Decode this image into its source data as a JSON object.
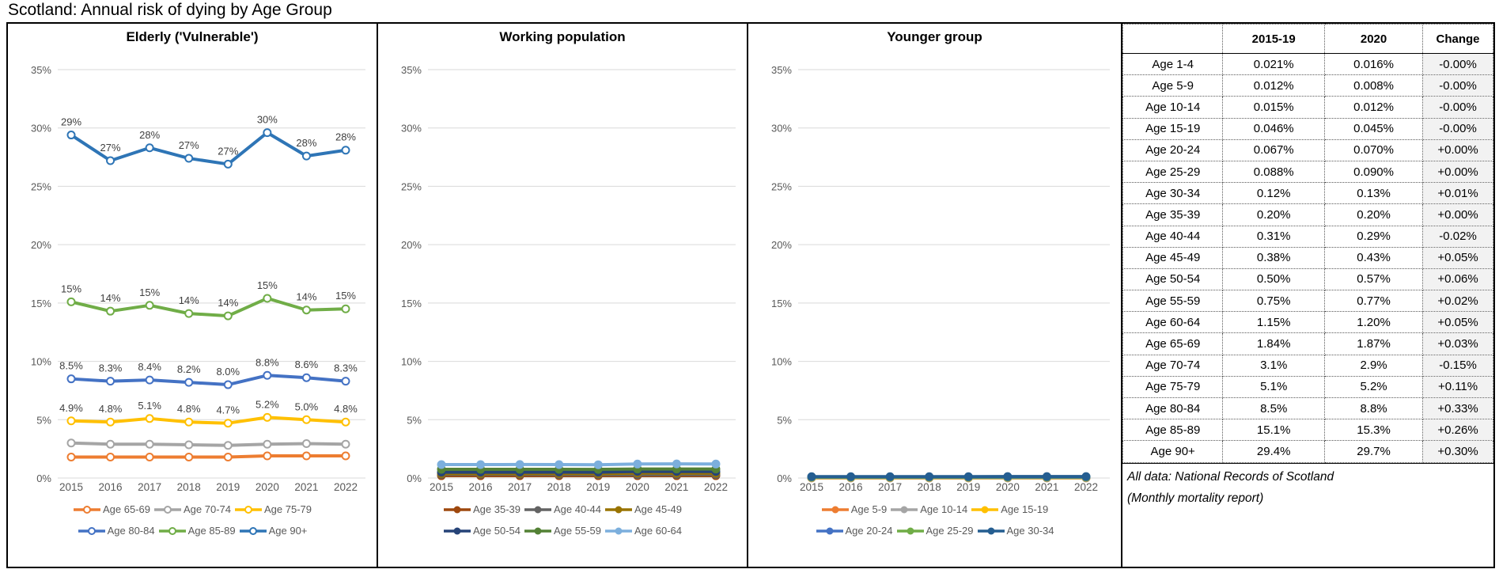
{
  "page_title": "Scotland: Annual risk of dying by Age Group",
  "axis": {
    "years": [
      "2015",
      "2016",
      "2017",
      "2018",
      "2019",
      "2020",
      "2021",
      "2022"
    ],
    "y_ticks_pct": [
      35,
      30,
      25,
      20,
      15,
      10,
      5,
      0
    ],
    "y_max": 35,
    "grid_color": "#D9D9D9",
    "tick_label_color": "#595959",
    "data_label_color": "#3F3F3F"
  },
  "chart_data": [
    {
      "type": "line",
      "title": "Elderly ('Vulnerable')",
      "x": [
        2015,
        2016,
        2017,
        2018,
        2019,
        2020,
        2021,
        2022
      ],
      "ylabel": "",
      "xlabel": "",
      "ylim": [
        0,
        35
      ],
      "marker": "hollow",
      "legend_position": "bottom",
      "series": [
        {
          "name": "Age 65-69",
          "color": "#ED7D31",
          "values": [
            1.8,
            1.8,
            1.8,
            1.8,
            1.8,
            1.9,
            1.9,
            1.9
          ]
        },
        {
          "name": "Age 70-74",
          "color": "#A5A5A5",
          "values": [
            3.0,
            2.9,
            2.9,
            2.85,
            2.8,
            2.9,
            2.95,
            2.9
          ]
        },
        {
          "name": "Age 75-79",
          "color": "#FFC000",
          "values": [
            4.9,
            4.8,
            5.1,
            4.8,
            4.7,
            5.2,
            5.0,
            4.8
          ],
          "labels": [
            "4.9%",
            "4.8%",
            "5.1%",
            "4.8%",
            "4.7%",
            "5.2%",
            "5.0%",
            "4.8%"
          ]
        },
        {
          "name": "Age 80-84",
          "color": "#4472C4",
          "values": [
            8.5,
            8.3,
            8.4,
            8.2,
            8.0,
            8.8,
            8.6,
            8.3
          ],
          "labels": [
            "8.5%",
            "8.3%",
            "8.4%",
            "8.2%",
            "8.0%",
            "8.8%",
            "8.6%",
            "8.3%"
          ]
        },
        {
          "name": "Age 85-89",
          "color": "#70AD47",
          "values": [
            15.1,
            14.3,
            14.8,
            14.1,
            13.9,
            15.4,
            14.4,
            14.5
          ],
          "labels": [
            "15%",
            "14%",
            "15%",
            "14%",
            "14%",
            "15%",
            "14%",
            "15%"
          ]
        },
        {
          "name": "Age 90+",
          "color": "#2E75B6",
          "values": [
            29.4,
            27.2,
            28.3,
            27.4,
            26.9,
            29.6,
            27.6,
            28.1
          ],
          "labels": [
            "29%",
            "27%",
            "28%",
            "27%",
            "27%",
            "30%",
            "28%",
            "28%"
          ]
        }
      ]
    },
    {
      "type": "line",
      "title": "Working population",
      "x": [
        2015,
        2016,
        2017,
        2018,
        2019,
        2020,
        2021,
        2022
      ],
      "ylabel": "",
      "xlabel": "",
      "ylim": [
        0,
        35
      ],
      "marker": "filled",
      "legend_position": "bottom",
      "series": [
        {
          "name": "Age 35-39",
          "color": "#9E480E",
          "values": [
            0.2,
            0.2,
            0.2,
            0.2,
            0.2,
            0.2,
            0.2,
            0.2
          ]
        },
        {
          "name": "Age 40-44",
          "color": "#636363",
          "values": [
            0.31,
            0.31,
            0.31,
            0.3,
            0.3,
            0.29,
            0.3,
            0.3
          ]
        },
        {
          "name": "Age 45-49",
          "color": "#997300",
          "values": [
            0.38,
            0.38,
            0.38,
            0.39,
            0.38,
            0.43,
            0.42,
            0.42
          ]
        },
        {
          "name": "Age 50-54",
          "color": "#264478",
          "values": [
            0.5,
            0.5,
            0.5,
            0.51,
            0.5,
            0.57,
            0.56,
            0.56
          ]
        },
        {
          "name": "Age 55-59",
          "color": "#538135",
          "values": [
            0.75,
            0.75,
            0.75,
            0.75,
            0.74,
            0.77,
            0.77,
            0.77
          ]
        },
        {
          "name": "Age 60-64",
          "color": "#7CAFDD",
          "values": [
            1.15,
            1.15,
            1.16,
            1.15,
            1.14,
            1.2,
            1.21,
            1.2
          ]
        }
      ]
    },
    {
      "type": "line",
      "title": "Younger group",
      "x": [
        2015,
        2016,
        2017,
        2018,
        2019,
        2020,
        2021,
        2022
      ],
      "ylabel": "",
      "xlabel": "",
      "ylim": [
        0,
        35
      ],
      "marker": "filled",
      "legend_position": "bottom",
      "series": [
        {
          "name": "Age 5-9",
          "color": "#ED7D31",
          "values": [
            0.012,
            0.012,
            0.011,
            0.011,
            0.012,
            0.008,
            0.009,
            0.009
          ]
        },
        {
          "name": "Age 10-14",
          "color": "#A5A5A5",
          "values": [
            0.015,
            0.015,
            0.015,
            0.014,
            0.015,
            0.012,
            0.013,
            0.013
          ]
        },
        {
          "name": "Age 15-19",
          "color": "#FFC000",
          "values": [
            0.046,
            0.046,
            0.045,
            0.046,
            0.046,
            0.045,
            0.045,
            0.045
          ]
        },
        {
          "name": "Age 20-24",
          "color": "#4472C4",
          "values": [
            0.067,
            0.067,
            0.068,
            0.067,
            0.067,
            0.07,
            0.07,
            0.07
          ]
        },
        {
          "name": "Age 25-29",
          "color": "#70AD47",
          "values": [
            0.088,
            0.088,
            0.088,
            0.088,
            0.089,
            0.09,
            0.09,
            0.09
          ]
        },
        {
          "name": "Age 30-34",
          "color": "#255E91",
          "values": [
            0.12,
            0.12,
            0.12,
            0.12,
            0.12,
            0.13,
            0.13,
            0.13
          ]
        }
      ]
    }
  ],
  "table": {
    "headers": [
      "",
      "2015-19",
      "2020",
      "Change"
    ],
    "rows": [
      [
        "Age 1-4",
        "0.021%",
        "0.016%",
        "-0.00%"
      ],
      [
        "Age 5-9",
        "0.012%",
        "0.008%",
        "-0.00%"
      ],
      [
        "Age 10-14",
        "0.015%",
        "0.012%",
        "-0.00%"
      ],
      [
        "Age 15-19",
        "0.046%",
        "0.045%",
        "-0.00%"
      ],
      [
        "Age 20-24",
        "0.067%",
        "0.070%",
        "+0.00%"
      ],
      [
        "Age 25-29",
        "0.088%",
        "0.090%",
        "+0.00%"
      ],
      [
        "Age 30-34",
        "0.12%",
        "0.13%",
        "+0.01%"
      ],
      [
        "Age 35-39",
        "0.20%",
        "0.20%",
        "+0.00%"
      ],
      [
        "Age 40-44",
        "0.31%",
        "0.29%",
        "-0.02%"
      ],
      [
        "Age 45-49",
        "0.38%",
        "0.43%",
        "+0.05%"
      ],
      [
        "Age 50-54",
        "0.50%",
        "0.57%",
        "+0.06%"
      ],
      [
        "Age 55-59",
        "0.75%",
        "0.77%",
        "+0.02%"
      ],
      [
        "Age 60-64",
        "1.15%",
        "1.20%",
        "+0.05%"
      ],
      [
        "Age 65-69",
        "1.84%",
        "1.87%",
        "+0.03%"
      ],
      [
        "Age 70-74",
        "3.1%",
        "2.9%",
        "-0.15%"
      ],
      [
        "Age 75-79",
        "5.1%",
        "5.2%",
        "+0.11%"
      ],
      [
        "Age 80-84",
        "8.5%",
        "8.8%",
        "+0.33%"
      ],
      [
        "Age 85-89",
        "15.1%",
        "15.3%",
        "+0.26%"
      ],
      [
        "Age 90+",
        "29.4%",
        "29.7%",
        "+0.30%"
      ]
    ],
    "footnote_line1": "All data: National Records of Scotland",
    "footnote_line2": "(Monthly mortality report)"
  }
}
